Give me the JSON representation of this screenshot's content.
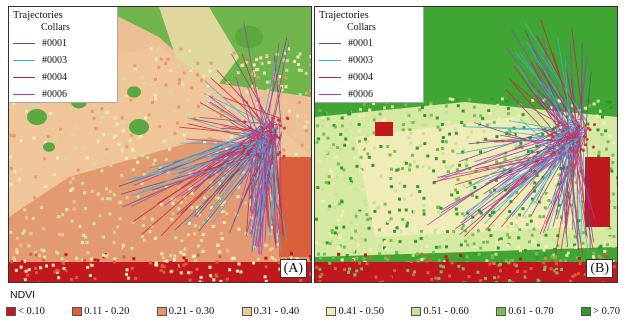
{
  "panels": [
    {
      "id": "A",
      "tag": "(A)",
      "legend_title": "Trajectories",
      "legend_subtitle": "Collars",
      "collars": [
        {
          "label": "#0001",
          "color": "#6a4a8a"
        },
        {
          "label": "#0003",
          "color": "#3bb0d8"
        },
        {
          "label": "#0004",
          "color": "#cc2244"
        },
        {
          "label": "#0006",
          "color": "#b03ab8"
        }
      ]
    },
    {
      "id": "B",
      "tag": "(B)",
      "legend_title": "Trajectories",
      "legend_subtitle": "Collars",
      "collars": [
        {
          "label": "#0001",
          "color": "#6a4a8a"
        },
        {
          "label": "#0003",
          "color": "#3bb0d8"
        },
        {
          "label": "#0004",
          "color": "#cc2244"
        },
        {
          "label": "#0006",
          "color": "#b03ab8"
        }
      ]
    }
  ],
  "ndvi": {
    "title": "NDVI",
    "classes": [
      {
        "label": "< 0.10",
        "color": "#c0181e"
      },
      {
        "label": "0.11 - 0.20",
        "color": "#d9603a"
      },
      {
        "label": "0.21 - 0.30",
        "color": "#e8936c"
      },
      {
        "label": "0.31 - 0.40",
        "color": "#f2c89a"
      },
      {
        "label": "0.41 - 0.50",
        "color": "#f4ecb4"
      },
      {
        "label": "0.51 - 0.60",
        "color": "#c7e39a"
      },
      {
        "label": "0.61 - 0.70",
        "color": "#78bd52"
      },
      {
        "label": "> 0.70",
        "color": "#2f9a2c"
      }
    ]
  }
}
